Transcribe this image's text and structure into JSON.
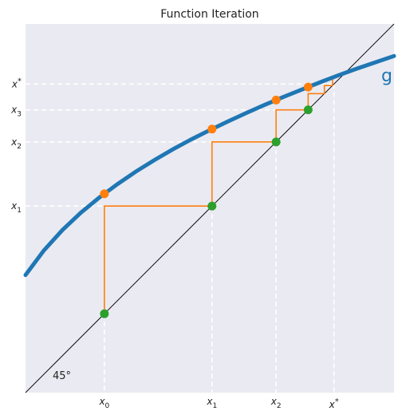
{
  "chart_data": {
    "type": "line",
    "title": "Function Iteration",
    "xlim": [
      0,
      1
    ],
    "ylim": [
      0,
      1
    ],
    "grid": false,
    "function_label": "g",
    "diagonal_label": "45°",
    "curve": {
      "name": "g",
      "color": "#1f77b4",
      "x": [
        0.0,
        0.05,
        0.1,
        0.15,
        0.2,
        0.25,
        0.3,
        0.35,
        0.4,
        0.45,
        0.5,
        0.55,
        0.6,
        0.65,
        0.7,
        0.75,
        0.8,
        0.85,
        0.9,
        0.95,
        1.0
      ],
      "y": [
        0.319,
        0.386,
        0.441,
        0.488,
        0.529,
        0.566,
        0.6,
        0.631,
        0.66,
        0.687,
        0.712,
        0.736,
        0.759,
        0.781,
        0.802,
        0.822,
        0.842,
        0.861,
        0.879,
        0.896,
        0.913
      ]
    },
    "iterates": {
      "color_curve_points": "#ff7f0e",
      "color_diagonal_points": "#2ca02c",
      "color_path": "#ff7f0e",
      "x": [
        0.214,
        0.506,
        0.68,
        0.767,
        0.811,
        0.833
      ]
    },
    "fixed_point": 0.837,
    "x_ticks": [
      {
        "value": 0.214,
        "base": "x",
        "sub": "0",
        "sup": ""
      },
      {
        "value": 0.506,
        "base": "x",
        "sub": "1",
        "sup": ""
      },
      {
        "value": 0.68,
        "base": "x",
        "sub": "2",
        "sup": ""
      },
      {
        "value": 0.837,
        "base": "x",
        "sub": "",
        "sup": "*"
      }
    ],
    "y_ticks": [
      {
        "value": 0.506,
        "base": "x",
        "sub": "1",
        "sup": ""
      },
      {
        "value": 0.68,
        "base": "x",
        "sub": "2",
        "sup": ""
      },
      {
        "value": 0.767,
        "base": "x",
        "sub": "3",
        "sup": ""
      },
      {
        "value": 0.837,
        "base": "x",
        "sub": "",
        "sup": "*"
      }
    ]
  }
}
